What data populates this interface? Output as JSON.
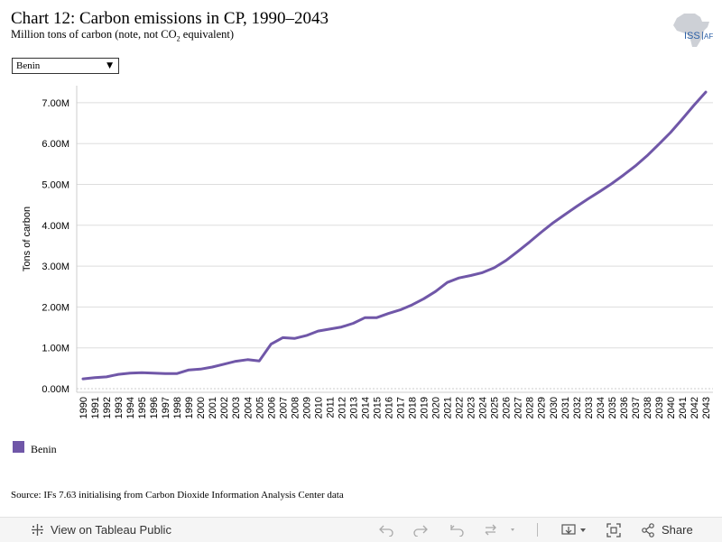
{
  "header": {
    "title": "Chart 12: Carbon emissions in CP, 1990–2043",
    "subtitle_main": "Million tons of carbon (note, not CO",
    "subtitle_sub": "2",
    "subtitle_end": " equivalent)"
  },
  "logo": {
    "text_main": "ISS",
    "text_suffix": "AF"
  },
  "filter": {
    "selected": "Benin"
  },
  "chart_data": {
    "type": "line",
    "ylabel": "Tons of carbon",
    "xlabel": "",
    "ylim": [
      0,
      7.45
    ],
    "yticks": [
      0,
      1,
      2,
      3,
      4,
      5,
      6,
      7
    ],
    "ytick_labels": [
      "0.00M",
      "1.00M",
      "2.00M",
      "3.00M",
      "4.00M",
      "5.00M",
      "6.00M",
      "7.00M"
    ],
    "grid": true,
    "legend_position": "bottom-left",
    "categories": [
      "1990",
      "1991",
      "1992",
      "1993",
      "1994",
      "1995",
      "1996",
      "1997",
      "1998",
      "1999",
      "2000",
      "2001",
      "2002",
      "2003",
      "2004",
      "2005",
      "2006",
      "2007",
      "2008",
      "2009",
      "2010",
      "2011",
      "2012",
      "2013",
      "2014",
      "2015",
      "2016",
      "2017",
      "2018",
      "2019",
      "2020",
      "2021",
      "2022",
      "2023",
      "2024",
      "2025",
      "2026",
      "2027",
      "2028",
      "2029",
      "2030",
      "2031",
      "2032",
      "2033",
      "2034",
      "2035",
      "2036",
      "2037",
      "2038",
      "2039",
      "2040",
      "2041",
      "2042",
      "2043"
    ],
    "series": [
      {
        "name": "Benin",
        "color": "#7057a8",
        "values": [
          0.24,
          0.27,
          0.29,
          0.35,
          0.38,
          0.39,
          0.38,
          0.37,
          0.37,
          0.46,
          0.48,
          0.53,
          0.6,
          0.67,
          0.71,
          0.68,
          1.09,
          1.25,
          1.23,
          1.3,
          1.41,
          1.46,
          1.51,
          1.6,
          1.74,
          1.74,
          1.84,
          1.93,
          2.05,
          2.2,
          2.38,
          2.6,
          2.71,
          2.77,
          2.84,
          2.96,
          3.14,
          3.36,
          3.59,
          3.83,
          4.06,
          4.26,
          4.46,
          4.65,
          4.83,
          5.02,
          5.23,
          5.45,
          5.7,
          5.98,
          6.27,
          6.6,
          6.94,
          7.26
        ]
      }
    ]
  },
  "source": "Source: IFs 7.63 initialising from Carbon Dioxide Information Analysis Center data",
  "toolbar": {
    "view_label": "View on Tableau Public",
    "share_label": "Share"
  },
  "icons": {
    "tableau": "tableau-logo-icon",
    "undo": "undo-icon",
    "redo": "redo-icon",
    "revert": "revert-icon",
    "refresh": "refresh-icon",
    "download": "download-icon",
    "fullscreen": "fullscreen-icon",
    "share": "share-icon"
  }
}
